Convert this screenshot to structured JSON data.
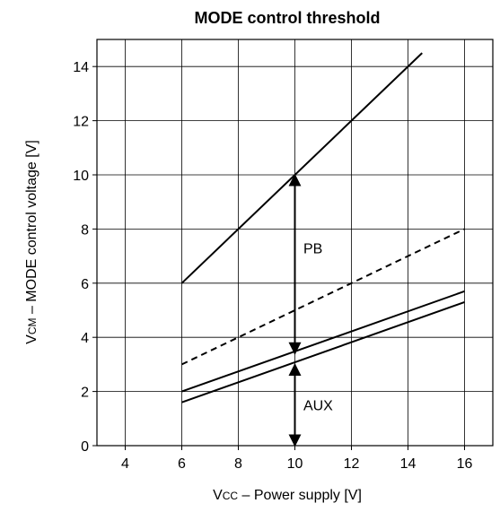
{
  "chart_data": {
    "type": "line",
    "title": "MODE control threshold",
    "xlabel": {
      "main": "V",
      "sub": "CC",
      "rest": " – Power supply [V]"
    },
    "ylabel": {
      "main": "V",
      "sub": "CM",
      "rest": " – MODE control voltage [V]"
    },
    "xlim": [
      3,
      17
    ],
    "ylim": [
      0,
      15
    ],
    "xticks": [
      4,
      6,
      8,
      10,
      12,
      14,
      16
    ],
    "yticks": [
      0,
      2,
      4,
      6,
      8,
      10,
      12,
      14
    ],
    "grid": true,
    "series": [
      {
        "style": "solid",
        "x": [
          6,
          14.5
        ],
        "y": [
          6,
          14.5
        ]
      },
      {
        "style": "dashed",
        "x": [
          6,
          16
        ],
        "y": [
          3,
          8
        ]
      },
      {
        "style": "solid",
        "x": [
          6,
          16
        ],
        "y": [
          2,
          5.7
        ]
      },
      {
        "style": "solid",
        "x": [
          6,
          16
        ],
        "y": [
          1.6,
          5.3
        ]
      }
    ],
    "annotations": [
      {
        "text": "PB",
        "x": 10.3,
        "y": 7.1
      },
      {
        "text": "AUX",
        "x": 10.3,
        "y": 1.3
      }
    ],
    "arrows": [
      {
        "x": 10,
        "y_from": 3.4,
        "y_to": 10
      },
      {
        "x": 10,
        "y_from": 0,
        "y_to": 3.0
      }
    ]
  }
}
